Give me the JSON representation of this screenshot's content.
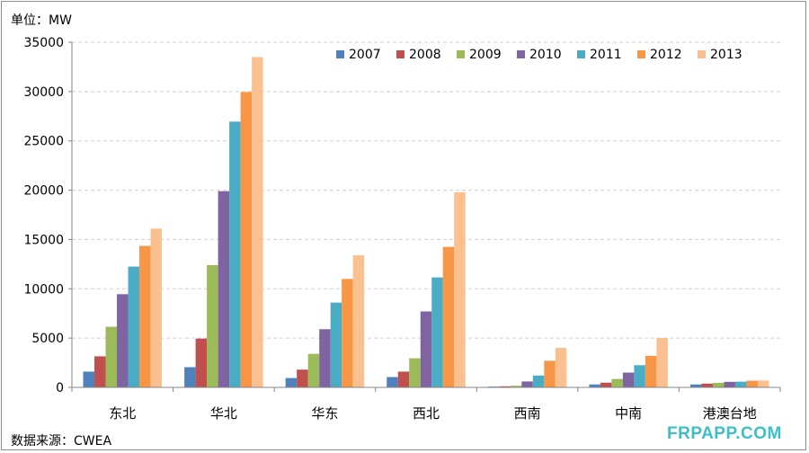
{
  "unit_label": "单位：MW",
  "source_label": "数据来源：CWEA",
  "watermark": "FRPAPP.COM",
  "chart_data": {
    "type": "bar",
    "title": "",
    "xlabel": "",
    "ylabel": "单位：MW",
    "ylim": [
      0,
      35000
    ],
    "yticks": [
      0,
      5000,
      10000,
      15000,
      20000,
      25000,
      30000,
      35000
    ],
    "grid": true,
    "legend_position": "top-right",
    "categories": [
      "东北",
      "华北",
      "华东",
      "西北",
      "西南",
      "中南",
      "港澳台地"
    ],
    "series": [
      {
        "name": "2007",
        "color": "#4f81bd",
        "values": [
          1600,
          2050,
          950,
          1050,
          80,
          300,
          300
        ]
      },
      {
        "name": "2008",
        "color": "#c0504d",
        "values": [
          3150,
          4950,
          1800,
          1600,
          110,
          480,
          380
        ]
      },
      {
        "name": "2009",
        "color": "#9bbb59",
        "values": [
          6150,
          12400,
          3400,
          2950,
          170,
          850,
          460
        ]
      },
      {
        "name": "2010",
        "color": "#8064a2",
        "values": [
          9450,
          19900,
          5900,
          7700,
          600,
          1500,
          560
        ]
      },
      {
        "name": "2011",
        "color": "#4bacc6",
        "values": [
          12250,
          26950,
          8600,
          11150,
          1200,
          2250,
          580
        ]
      },
      {
        "name": "2012",
        "color": "#f79646",
        "values": [
          14350,
          29950,
          11000,
          14250,
          2700,
          3200,
          680
        ]
      },
      {
        "name": "2013",
        "color": "#fac090",
        "values": [
          16100,
          33500,
          13400,
          19800,
          4000,
          5000,
          700
        ]
      }
    ]
  }
}
